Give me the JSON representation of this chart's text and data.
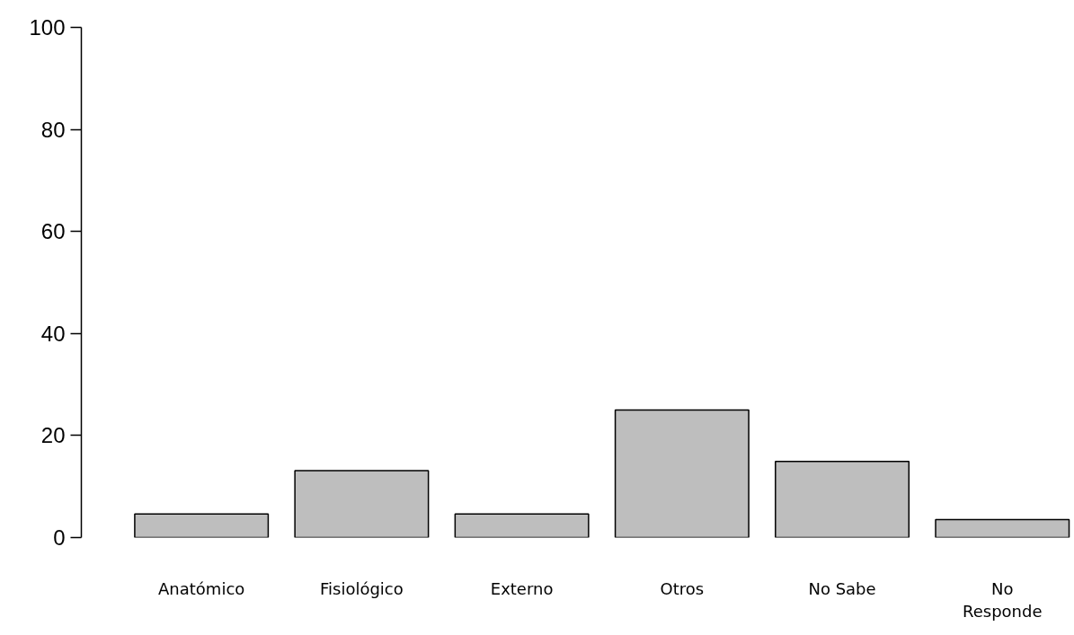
{
  "chart_data": {
    "type": "bar",
    "categories": [
      "Anatómico",
      "Fisiológico",
      "Externo",
      "Otros",
      "No Sabe",
      "No\nResponde"
    ],
    "values": [
      4.6,
      13.1,
      4.6,
      25,
      14.9,
      3.5
    ],
    "color": "#bebebe",
    "ylim": [
      0,
      100
    ],
    "yticks": [
      0,
      20,
      40,
      60,
      80,
      100
    ],
    "grid": false
  }
}
